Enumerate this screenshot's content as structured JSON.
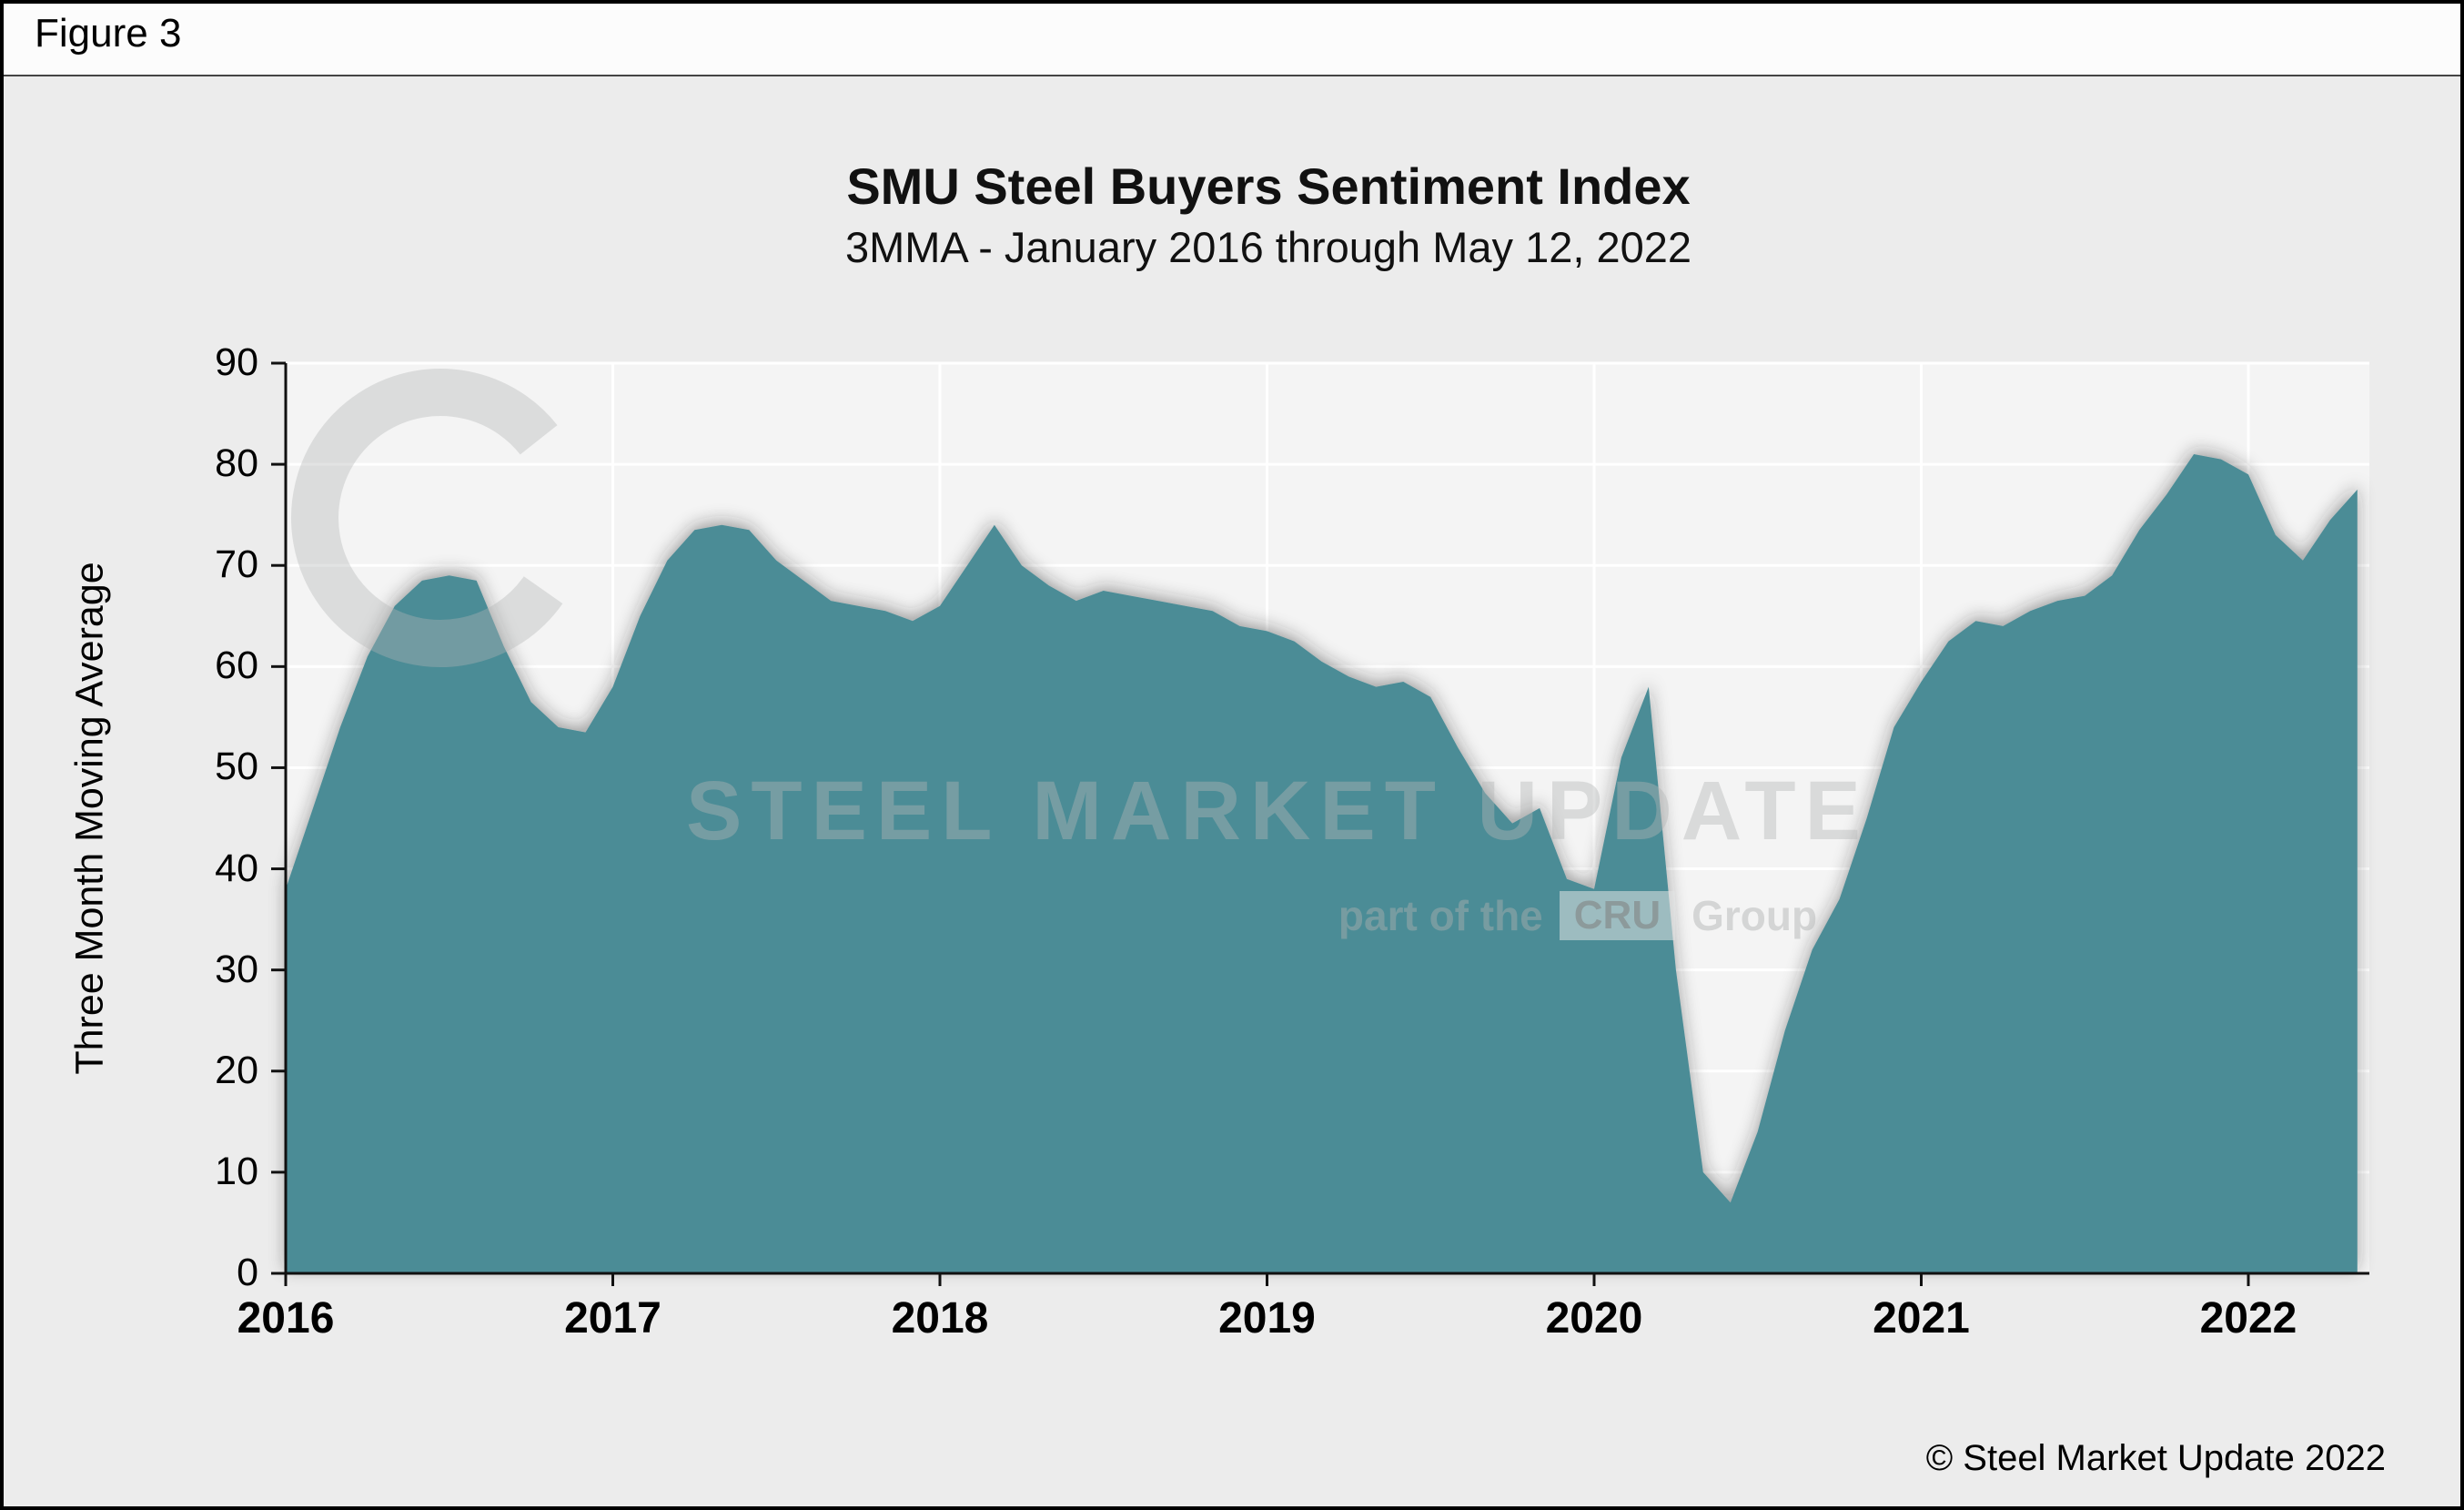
{
  "figure_label": "Figure 3",
  "copyright": "© Steel Market Update 2022",
  "watermark": {
    "main": "STEEL MARKET UPDATE",
    "part_prefix": "part of the",
    "cru_label": "CRU",
    "part_suffix": "Group"
  },
  "chart_data": {
    "type": "area",
    "title": "SMU Steel Buyers Sentiment Index",
    "subtitle": "3MMA - January 2016 through May 12, 2022",
    "ylabel": "Three Month Moving Average",
    "ylim": [
      0,
      90
    ],
    "y_ticks": [
      0,
      10,
      20,
      30,
      40,
      50,
      60,
      70,
      80,
      90
    ],
    "xlim": [
      2016,
      2022.37
    ],
    "x_ticks": [
      2016,
      2017,
      2018,
      2019,
      2020,
      2021,
      2022
    ],
    "grid": "white vertical gridlines at years and horizontal gridlines every 10",
    "legend": "none",
    "series": [
      {
        "name": "SMU Steel Buyers Sentiment Index 3MMA",
        "color": "#4b8c96",
        "start": "2016-01",
        "end": "2022-05",
        "frequency": "monthly",
        "values": [
          38,
          46,
          54,
          61,
          66,
          68.5,
          69,
          68.5,
          62,
          56.5,
          54,
          53.5,
          58,
          65,
          70.5,
          73.5,
          74,
          73.5,
          70.5,
          68.5,
          66.5,
          66,
          65.5,
          64.5,
          66,
          70,
          74,
          70,
          68,
          66.5,
          67.5,
          67,
          66.5,
          66,
          65.5,
          64,
          63.5,
          62.5,
          60.5,
          59,
          58,
          58.5,
          57,
          52,
          47.5,
          44.5,
          46,
          39,
          38,
          51,
          58,
          30,
          10,
          7,
          14,
          24,
          32,
          37,
          45,
          54,
          58.5,
          62.5,
          64.5,
          64,
          65.5,
          66.5,
          67,
          69,
          73.5,
          77,
          81,
          80.5,
          79,
          73,
          70.5,
          74.5,
          77.5
        ]
      }
    ]
  }
}
